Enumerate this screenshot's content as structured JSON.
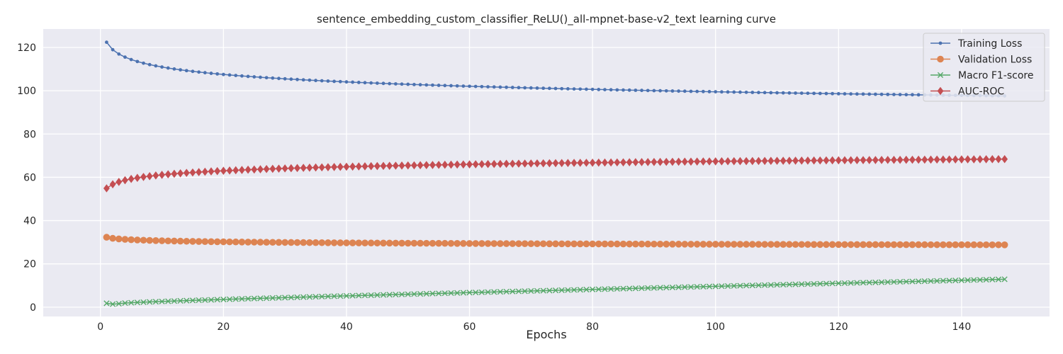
{
  "chart_data": {
    "type": "line",
    "title": "sentence_embedding_custom_classifier_ReLU()_all-mpnet-base-v2_text learning curve",
    "xlabel": "Epochs",
    "ylabel": "",
    "xlim": [
      -9.3,
      154.3
    ],
    "ylim": [
      -4.3,
      128.5
    ],
    "xticks": [
      0,
      20,
      40,
      60,
      80,
      100,
      120,
      140
    ],
    "yticks": [
      0,
      20,
      40,
      60,
      80,
      100,
      120
    ],
    "grid": true,
    "legend": "top-right",
    "epochs": [
      1,
      147
    ],
    "series": [
      {
        "name": "Training Loss",
        "color": "#4c72b0",
        "marker": "dot",
        "start": 122.4,
        "end": 97.6,
        "shape": "log"
      },
      {
        "name": "Validation Loss",
        "color": "#dd8452",
        "marker": "circle",
        "start": 32.3,
        "end": 28.8,
        "shape": "log"
      },
      {
        "name": "Macro F1-score",
        "color": "#55a868",
        "marker": "x",
        "start": 1.8,
        "end": 12.9,
        "shape": "rise",
        "min": 1.4,
        "min_epoch": 2
      },
      {
        "name": "AUC-ROC",
        "color": "#c44e52",
        "marker": "diamond",
        "start": 54.9,
        "end": 68.4,
        "shape": "log"
      }
    ]
  }
}
